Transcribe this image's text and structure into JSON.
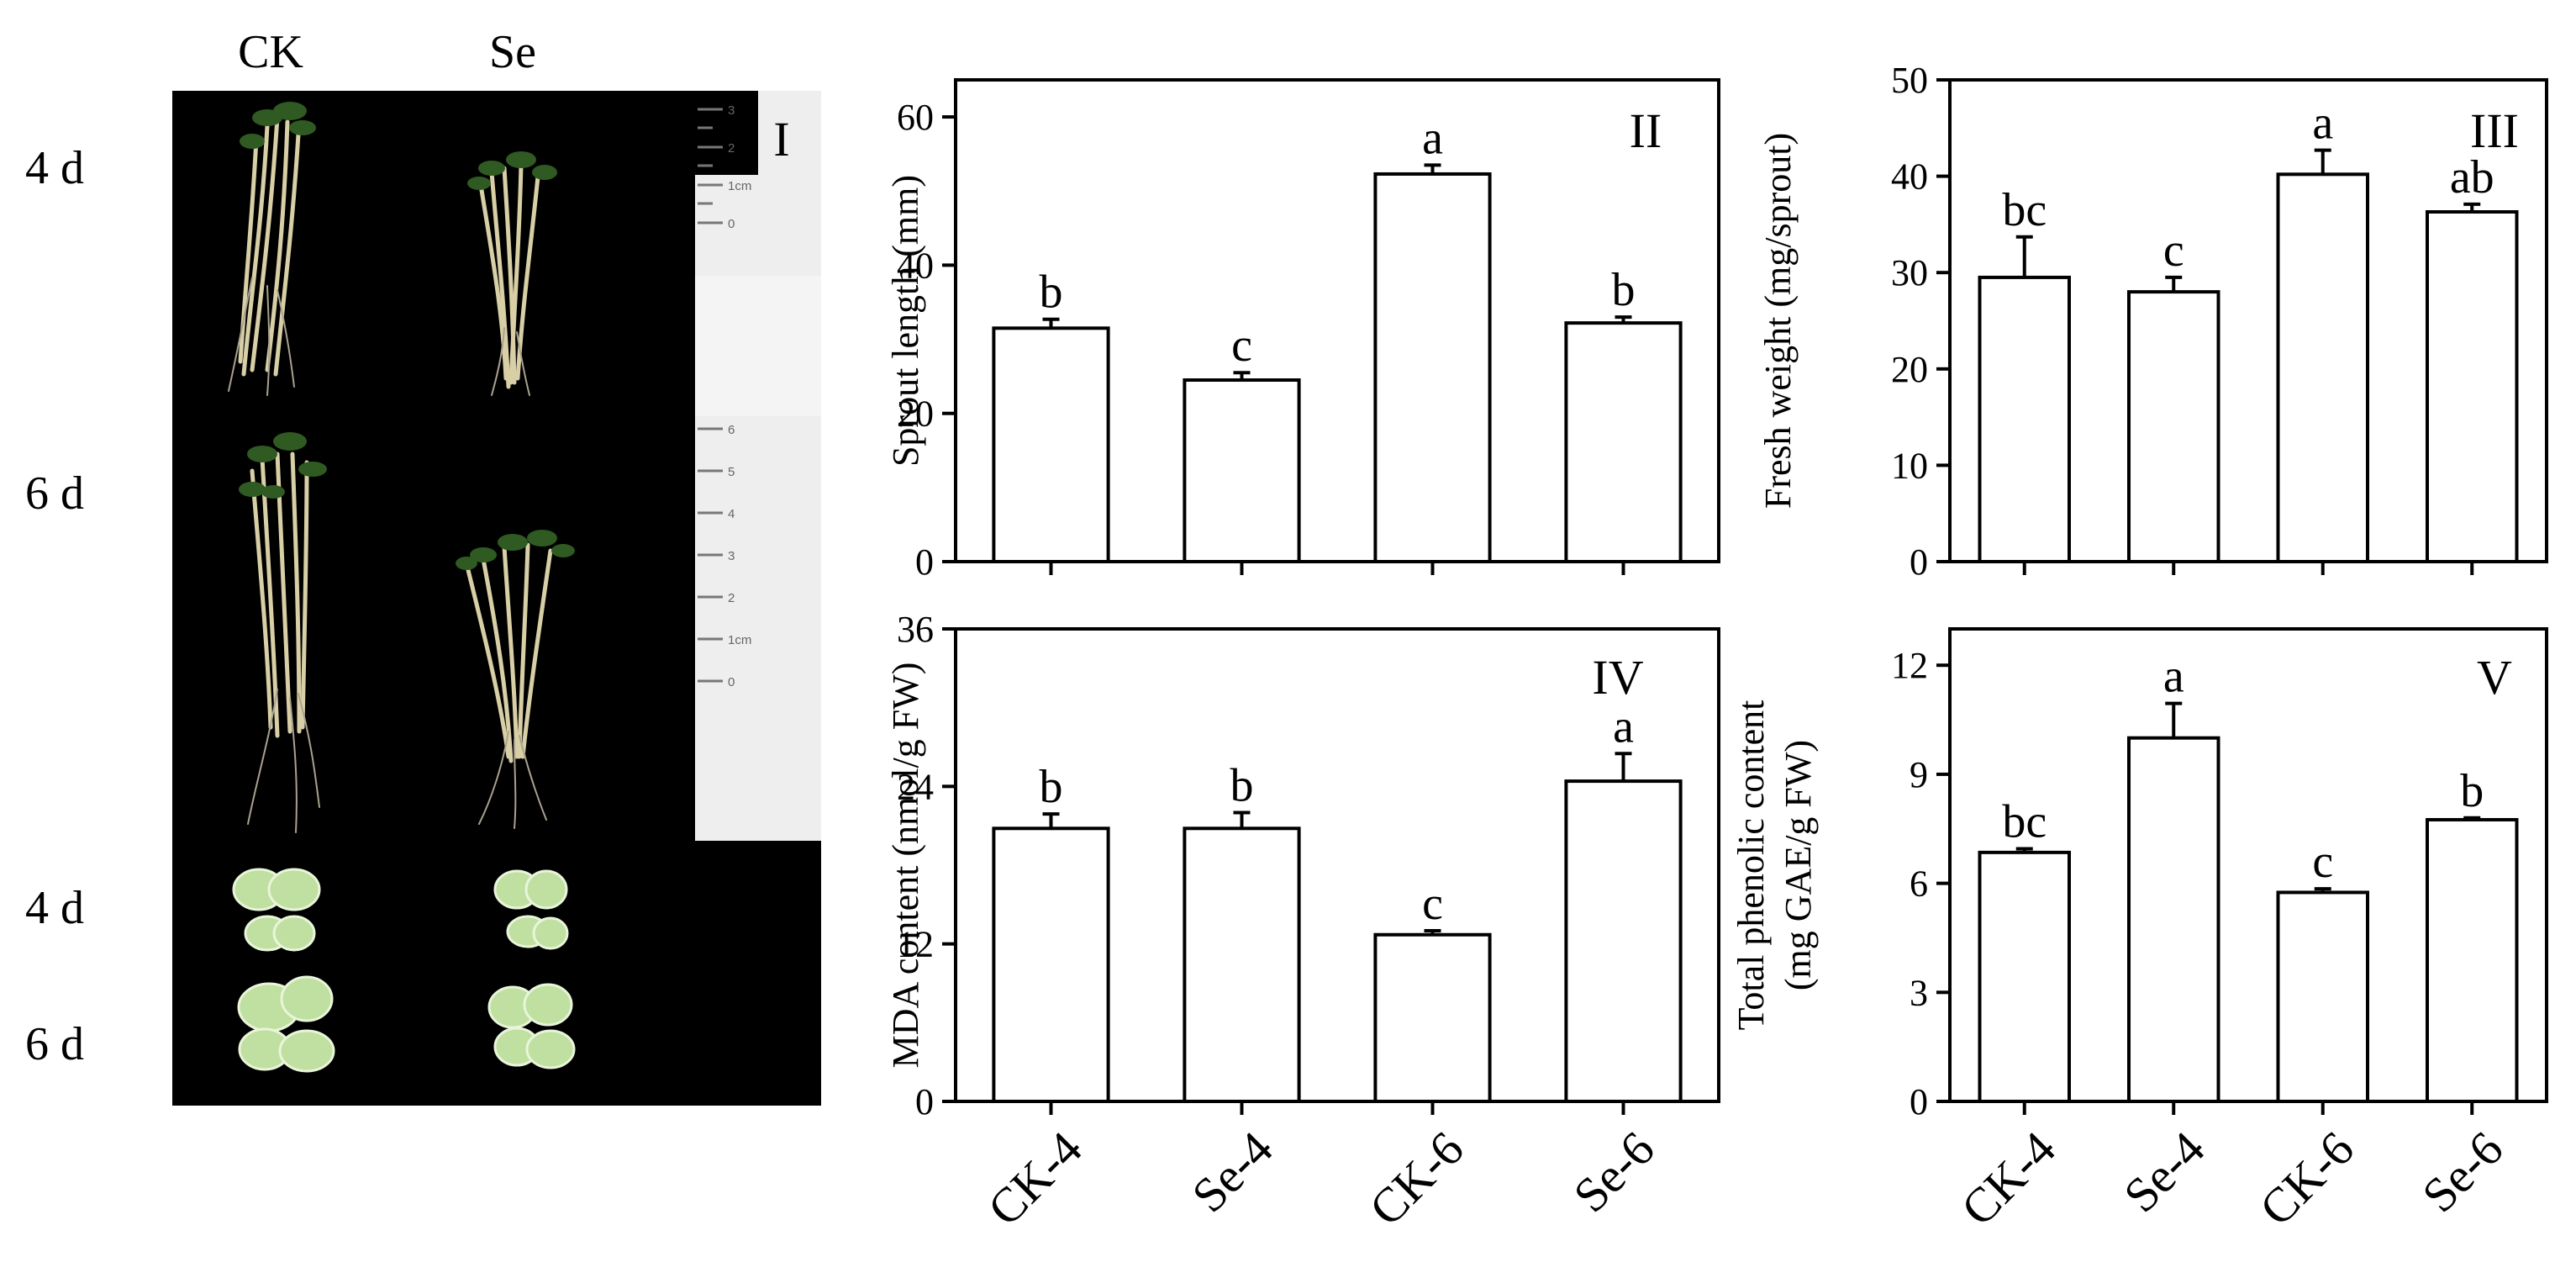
{
  "photo_panel": {
    "panel_id": "I",
    "col_labels": [
      "CK",
      "Se"
    ],
    "row_labels": [
      "4 d",
      "6 d",
      "4 d",
      "6 d"
    ],
    "ruler_ticks_upper": [
      "3",
      "2",
      "1cm",
      "0"
    ],
    "ruler_ticks_lower": [
      "6",
      "5",
      "4",
      "3",
      "2",
      "1cm",
      "0"
    ]
  },
  "chart_data": [
    {
      "type": "bar",
      "panel_id": "II",
      "categories": [
        "CK-4",
        "Se-4",
        "CK-6",
        "Se-6"
      ],
      "values": [
        31.5,
        24.5,
        52.3,
        32.2
      ],
      "errors": [
        1.2,
        1.0,
        1.2,
        0.8
      ],
      "significance": [
        "b",
        "c",
        "a",
        "b"
      ],
      "ylabel": "Sprout length (mm)",
      "ylim": [
        0,
        65
      ],
      "yticks": [
        0,
        20,
        40,
        60
      ],
      "show_xticklabels": false
    },
    {
      "type": "bar",
      "panel_id": "III",
      "categories": [
        "CK-4",
        "Se-4",
        "CK-6",
        "Se-6"
      ],
      "values": [
        29.5,
        28.0,
        40.2,
        36.3
      ],
      "errors": [
        4.2,
        1.5,
        2.5,
        0.8
      ],
      "significance": [
        "bc",
        "c",
        "a",
        "ab"
      ],
      "ylabel": "Fresh weight (mg/sprout)",
      "ylim": [
        0,
        50
      ],
      "yticks": [
        0,
        10,
        20,
        30,
        40,
        50
      ],
      "show_xticklabels": false
    },
    {
      "type": "bar",
      "panel_id": "IV",
      "categories": [
        "CK-4",
        "Se-4",
        "CK-6",
        "Se-6"
      ],
      "values": [
        20.8,
        20.8,
        12.7,
        24.4
      ],
      "errors": [
        1.1,
        1.2,
        0.3,
        2.1
      ],
      "significance": [
        "b",
        "b",
        "c",
        "a"
      ],
      "ylabel": "MDA content (nmol/g FW)",
      "ylim": [
        0,
        36
      ],
      "yticks": [
        0,
        12,
        24,
        36
      ],
      "show_xticklabels": true
    },
    {
      "type": "bar",
      "panel_id": "V",
      "categories": [
        "CK-4",
        "Se-4",
        "CK-6",
        "Se-6"
      ],
      "values": [
        6.85,
        10.0,
        5.75,
        7.75
      ],
      "errors": [
        0.1,
        0.95,
        0.1,
        0.05
      ],
      "significance": [
        "bc",
        "a",
        "c",
        "b"
      ],
      "ylabel_lines": [
        "Total phenolic content",
        "(mg GAE/g FW)"
      ],
      "ylim": [
        0,
        13
      ],
      "yticks": [
        0,
        3,
        6,
        9,
        12
      ],
      "show_xticklabels": true
    }
  ]
}
